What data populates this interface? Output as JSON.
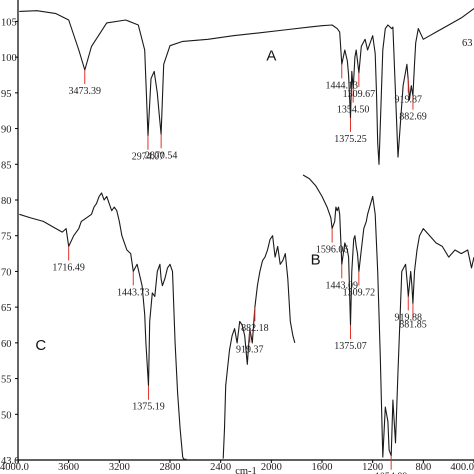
{
  "chart_data": {
    "type": "line",
    "title": "",
    "xlabel": "cm-1",
    "ylabel": "",
    "xlim": [
      4000,
      400
    ],
    "ylim": [
      43.6,
      108
    ],
    "grid": false,
    "legend": "none",
    "x_tick_labels": [
      "4000.0",
      "3600",
      "3200",
      "2800",
      "2400",
      "2000",
      "1600",
      "1200",
      "800",
      "400.0"
    ],
    "y_tick_labels": [
      "105",
      "100",
      "95",
      "90",
      "85",
      "80",
      "75",
      "70",
      "65",
      "60",
      "55",
      "50",
      "43.6"
    ],
    "series": [
      {
        "name": "A",
        "x": [
          3990,
          3850,
          3700,
          3600,
          3520,
          3473,
          3420,
          3300,
          3150,
          3050,
          3000,
          2974,
          2950,
          2925,
          2900,
          2885,
          2870,
          2850,
          2800,
          2700,
          2500,
          2300,
          2100,
          1900,
          1700,
          1600,
          1520,
          1480,
          1460,
          1444,
          1420,
          1400,
          1390,
          1375,
          1365,
          1354,
          1340,
          1330,
          1309,
          1290,
          1260,
          1240,
          1200,
          1180,
          1170,
          1160,
          1150,
          1120,
          1100,
          1080,
          1050,
          1040,
          1000,
          960,
          930,
          920,
          910,
          895,
          882,
          870,
          860,
          840,
          800,
          750,
          700,
          600,
          500,
          400
        ],
        "y": [
          106.4,
          106.5,
          106.1,
          105.2,
          101.0,
          98.2,
          101.5,
          104.8,
          105.2,
          104.5,
          101.0,
          89.0,
          97.0,
          98.0,
          95.0,
          92.0,
          89.2,
          99.0,
          101.6,
          102.2,
          102.5,
          103.0,
          103.4,
          103.8,
          104.2,
          104.4,
          104.5,
          104.0,
          103.5,
          99.0,
          101.0,
          99.5,
          97.5,
          91.5,
          98.0,
          95.6,
          100.0,
          101.0,
          97.8,
          101.5,
          102.5,
          101.0,
          103.0,
          100.5,
          95.0,
          88.0,
          85.0,
          101.0,
          104.0,
          104.5,
          104.0,
          104.2,
          86.0,
          96.0,
          99.0,
          97.0,
          94.0,
          96.0,
          94.6,
          99.0,
          102.0,
          104.0,
          102.5,
          103.0,
          103.5,
          104.5,
          105.5,
          106.8
        ]
      },
      {
        "name": "B",
        "x": [
          1750,
          1700,
          1650,
          1600,
          1560,
          1530,
          1520,
          1500,
          1490,
          1480,
          1470,
          1460,
          1444,
          1420,
          1400,
          1390,
          1375,
          1365,
          1350,
          1340,
          1330,
          1320,
          1309,
          1290,
          1270,
          1250,
          1240,
          1200,
          1180,
          1160,
          1140,
          1120,
          1100,
          1080,
          1070,
          1060,
          1054,
          1040,
          1030,
          1020,
          1000,
          970,
          940,
          925,
          919,
          910,
          900,
          890,
          882,
          870,
          850,
          830,
          800,
          750,
          700,
          650,
          600,
          550,
          500,
          450,
          420,
          400
        ],
        "y": [
          83.5,
          83.0,
          82.0,
          80.5,
          79.0,
          77.5,
          76.0,
          77.0,
          79.0,
          78.5,
          79.0,
          78.0,
          71.0,
          74.0,
          73.0,
          72.0,
          62.5,
          70.0,
          74.5,
          75.0,
          73.5,
          72.5,
          70.0,
          73.0,
          76.0,
          77.0,
          78.0,
          80.5,
          78.0,
          70.0,
          58.0,
          44.0,
          51.0,
          49.0,
          45.0,
          44.5,
          44.2,
          52.0,
          49.0,
          46.0,
          56.0,
          70.0,
          71.0,
          68.0,
          66.5,
          68.0,
          70.0,
          68.0,
          65.5,
          70.0,
          73.0,
          75.0,
          76.0,
          75.0,
          74.0,
          73.5,
          72.0,
          73.0,
          72.5,
          73.0,
          70.5,
          72.0
        ]
      },
      {
        "name": "C",
        "x": [
          3990,
          3900,
          3800,
          3700,
          3650,
          3620,
          3600,
          3560,
          3520,
          3500,
          3460,
          3420,
          3400,
          3380,
          3360,
          3340,
          3320,
          3300,
          3280,
          3260,
          3240,
          3220,
          3200,
          3180,
          3160,
          3140,
          3110,
          3090,
          3060,
          3040,
          3020,
          3000,
          2990,
          2970,
          2960,
          2940,
          2920,
          2900,
          2880,
          2870,
          2860,
          2840,
          2820,
          2800,
          2780,
          2760,
          2740,
          2720,
          2700,
          2690,
          2680,
          2670
        ],
        "y": [
          78.0,
          77.5,
          77.0,
          76.0,
          75.5,
          76.0,
          73.5,
          75.0,
          76.0,
          77.0,
          77.5,
          78.0,
          79.0,
          79.5,
          80.5,
          81.0,
          80.0,
          80.5,
          79.5,
          78.5,
          79.0,
          78.5,
          77.0,
          75.0,
          74.0,
          73.0,
          72.5,
          70.0,
          71.0,
          69.5,
          68.0,
          64.0,
          60.0,
          54.0,
          63.0,
          67.0,
          66.5,
          70.0,
          71.0,
          69.0,
          68.0,
          69.0,
          70.5,
          71.0,
          70.0,
          60.0,
          53.0,
          48.0,
          44.0,
          43.7,
          43.7,
          43.7
        ]
      },
      {
        "name": "C",
        "x": [
          2380,
          2370,
          2360,
          2330,
          2310,
          2290,
          2270,
          2250,
          2230,
          2210,
          2190,
          2170,
          2150,
          2130,
          2110,
          2090,
          2070,
          2050,
          2030,
          2010,
          1990,
          1970,
          1950,
          1930,
          1910,
          1890,
          1870,
          1850,
          1830,
          1815
        ],
        "y": [
          43.8,
          48.0,
          54.0,
          59.0,
          61.0,
          62.0,
          60.0,
          63.0,
          62.5,
          61.0,
          57.0,
          62.0,
          60.0,
          65.0,
          68.0,
          70.0,
          71.5,
          72.0,
          73.0,
          74.5,
          75.0,
          72.0,
          73.5,
          71.0,
          71.5,
          72.5,
          69.0,
          63.0,
          61.0,
          60.0
        ]
      }
    ],
    "peak_labels": [
      {
        "text": "3473.39",
        "x": 3473,
        "y": 98.2
      },
      {
        "text": "2974.07",
        "x": 2974,
        "y": 89.0
      },
      {
        "text": "2870.54",
        "x": 2870,
        "y": 89.2
      },
      {
        "text": "1444.13",
        "x": 1444,
        "y": 99.0
      },
      {
        "text": "1309.67",
        "x": 1309,
        "y": 97.8
      },
      {
        "text": "1354.50",
        "x": 1354,
        "y": 95.6
      },
      {
        "text": "1375.25",
        "x": 1375,
        "y": 91.5
      },
      {
        "text": "919.87",
        "x": 919,
        "y": 97.0
      },
      {
        "text": "882.69",
        "x": 882,
        "y": 94.6
      },
      {
        "text": "1596.06",
        "x": 1520,
        "y": 76.0
      },
      {
        "text": "1443.09",
        "x": 1444,
        "y": 71.0
      },
      {
        "text": "1309.72",
        "x": 1309,
        "y": 70.0
      },
      {
        "text": "1375.07",
        "x": 1375,
        "y": 62.5
      },
      {
        "text": "919.88",
        "x": 919,
        "y": 66.5
      },
      {
        "text": "881.85",
        "x": 882,
        "y": 65.5
      },
      {
        "text": "1054.89",
        "x": 1054,
        "y": 44.2
      },
      {
        "text": "1716.49",
        "x": 3600,
        "y": 73.5
      },
      {
        "text": "1443.73",
        "x": 3090,
        "y": 70.0
      },
      {
        "text": "1375.19",
        "x": 2970,
        "y": 54.0
      },
      {
        "text": "919.37",
        "x": 2170,
        "y": 62.0
      },
      {
        "text": "882.18",
        "x": 2130,
        "y": 65.0
      }
    ],
    "panel_labels": [
      {
        "text": "A",
        "x": 2000,
        "y": 99.5
      },
      {
        "text": "B",
        "x": 1650,
        "y": 71.0
      },
      {
        "text": "C",
        "x": 3820,
        "y": 59.0
      }
    ],
    "edge_text": "63"
  }
}
